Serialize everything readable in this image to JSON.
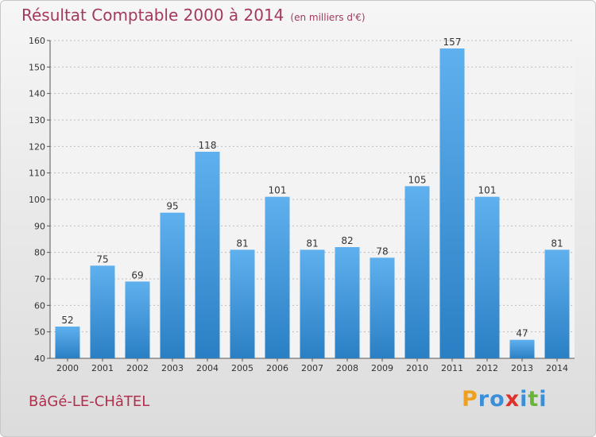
{
  "chart_data": {
    "type": "bar",
    "title": "Résultat Comptable 2000 à 2014",
    "subtitle": "(en milliers d'€)",
    "categories": [
      "2000",
      "2001",
      "2002",
      "2003",
      "2004",
      "2005",
      "2006",
      "2007",
      "2008",
      "2009",
      "2010",
      "2011",
      "2012",
      "2013",
      "2014"
    ],
    "values": [
      52,
      75,
      69,
      95,
      118,
      81,
      101,
      81,
      82,
      78,
      105,
      157,
      101,
      47,
      81
    ],
    "ylim": [
      40,
      160
    ],
    "yticks": [
      40,
      50,
      60,
      70,
      80,
      90,
      100,
      110,
      120,
      130,
      140,
      150,
      160
    ],
    "xlabel": "",
    "ylabel": "",
    "grid": true,
    "bar_color": "#4a9ee0"
  },
  "footer": {
    "commune": "BâGé-LE-CHâTEL",
    "brand_letters": [
      "P",
      "r",
      "o",
      "x",
      "i",
      "t",
      "i"
    ],
    "brand_colors": [
      "#f0a020",
      "#3a8fd8",
      "#3a8fd8",
      "#e0302a",
      "#3a8fd8",
      "#69b53a",
      "#3a8fd8"
    ]
  }
}
